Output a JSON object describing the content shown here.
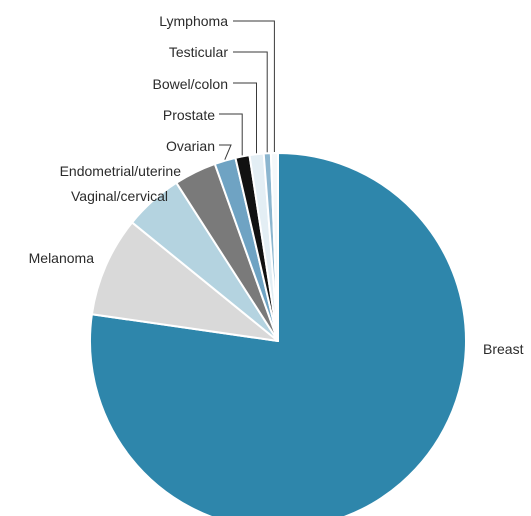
{
  "chart_data": {
    "type": "pie",
    "title": "",
    "slices": [
      {
        "label": "Breast",
        "value": 76.5,
        "color": "#2e86ab"
      },
      {
        "label": "Melanoma",
        "value": 8.5,
        "color": "#d9d9d9"
      },
      {
        "label": "Vaginal/cervical",
        "value": 5.0,
        "color": "#b4d3e0"
      },
      {
        "label": "Endometrial/uterine",
        "value": 3.6,
        "color": "#7a7a7a"
      },
      {
        "label": "Ovarian",
        "value": 1.8,
        "color": "#6fa3c3"
      },
      {
        "label": "Prostate",
        "value": 1.2,
        "color": "#111111"
      },
      {
        "label": "Bowel/colon",
        "value": 1.2,
        "color": "#e3eef4"
      },
      {
        "label": "Testicular",
        "value": 0.6,
        "color": "#8cb6cf"
      },
      {
        "label": "Lymphoma",
        "value": 0.6,
        "color": "#f4f8fa"
      }
    ],
    "legend": "none",
    "labels": "callout"
  }
}
